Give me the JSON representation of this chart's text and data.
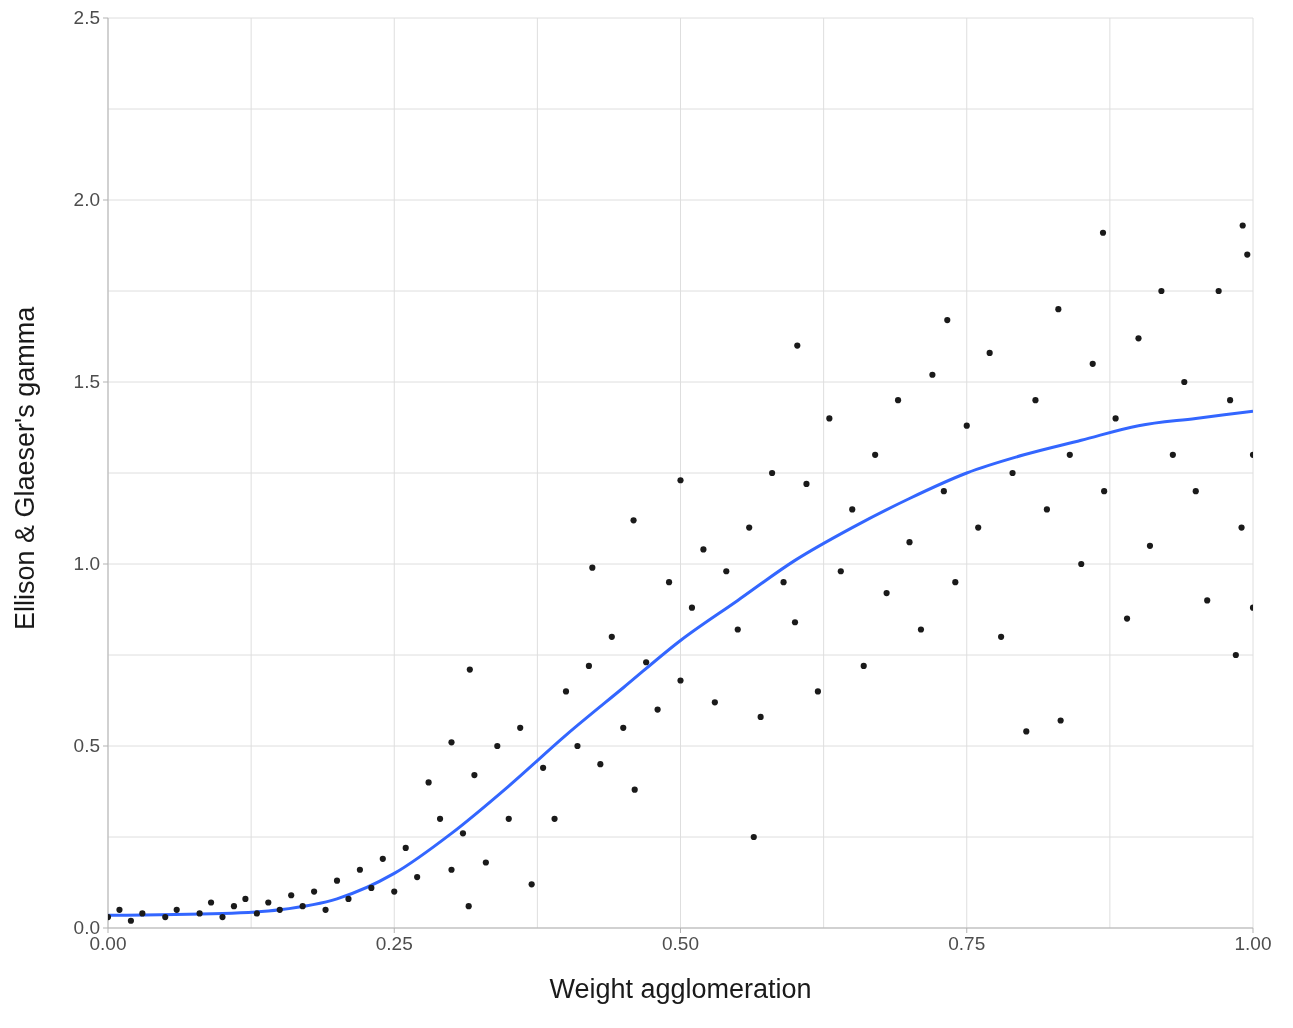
{
  "chart_data": {
    "type": "scatter",
    "xlabel": "Weight agglomeration",
    "ylabel": "Ellison & Glaeser's gamma",
    "xlim": [
      0,
      1
    ],
    "ylim": [
      0,
      2.5
    ],
    "xticks": [
      {
        "value": 0,
        "label": "0.00"
      },
      {
        "value": 0.125,
        "label": null
      },
      {
        "value": 0.25,
        "label": "0.25"
      },
      {
        "value": 0.375,
        "label": null
      },
      {
        "value": 0.5,
        "label": "0.50"
      },
      {
        "value": 0.625,
        "label": null
      },
      {
        "value": 0.75,
        "label": "0.75"
      },
      {
        "value": 0.875,
        "label": null
      },
      {
        "value": 1,
        "label": "1.00"
      }
    ],
    "yticks": [
      {
        "value": 0,
        "label": "0.0"
      },
      {
        "value": 0.25,
        "label": null
      },
      {
        "value": 0.5,
        "label": "0.5"
      },
      {
        "value": 0.75,
        "label": null
      },
      {
        "value": 1,
        "label": "1.0"
      },
      {
        "value": 1.25,
        "label": null
      },
      {
        "value": 1.5,
        "label": "1.5"
      },
      {
        "value": 1.75,
        "label": null
      },
      {
        "value": 2,
        "label": "2.0"
      },
      {
        "value": 2.25,
        "label": null
      },
      {
        "value": 2.5,
        "label": "2.5"
      }
    ],
    "grid": true,
    "marker": "circle",
    "series": [
      {
        "color": "#1a1a1a",
        "x": [
          0.0,
          0.01,
          0.02,
          0.03,
          0.05,
          0.06,
          0.08,
          0.09,
          0.1,
          0.11,
          0.12,
          0.13,
          0.14,
          0.15,
          0.16,
          0.17,
          0.18,
          0.19,
          0.2,
          0.21,
          0.22,
          0.23,
          0.24,
          0.25,
          0.26,
          0.27,
          0.28,
          0.29,
          0.3,
          0.3,
          0.31,
          0.32,
          0.33,
          0.34,
          0.35,
          0.36,
          0.37,
          0.38,
          0.39,
          0.4,
          0.41,
          0.42,
          0.43,
          0.44,
          0.45,
          0.46,
          0.47,
          0.48,
          0.49,
          0.5,
          0.51,
          0.52,
          0.53,
          0.54,
          0.55,
          0.56,
          0.57,
          0.58,
          0.59,
          0.6,
          0.61,
          0.62,
          0.63,
          0.64,
          0.65,
          0.66,
          0.67,
          0.68,
          0.69,
          0.7,
          0.71,
          0.72,
          0.73,
          0.74,
          0.75,
          0.76,
          0.77,
          0.78,
          0.79,
          0.81,
          0.82,
          0.83,
          0.84,
          0.85,
          0.86,
          0.87,
          0.88,
          0.89,
          0.9,
          0.91,
          0.92,
          0.93,
          0.94,
          0.95,
          0.96,
          0.97,
          0.98,
          0.99,
          1.0,
          1.0,
          0.995,
          0.316,
          0.5,
          0.602,
          0.869,
          0.991,
          0.564,
          0.802,
          0.832,
          0.985,
          0.459,
          0.423,
          0.315,
          0.733
        ],
        "values": [
          0.03,
          0.05,
          0.02,
          0.04,
          0.03,
          0.05,
          0.04,
          0.07,
          0.03,
          0.06,
          0.08,
          0.04,
          0.07,
          0.05,
          0.09,
          0.06,
          0.1,
          0.05,
          0.13,
          0.08,
          0.16,
          0.11,
          0.19,
          0.1,
          0.22,
          0.14,
          0.4,
          0.3,
          0.16,
          0.51,
          0.26,
          0.42,
          0.18,
          0.5,
          0.3,
          0.55,
          0.12,
          0.44,
          0.3,
          0.65,
          0.5,
          0.72,
          0.45,
          0.8,
          0.55,
          0.38,
          0.73,
          0.6,
          0.95,
          0.68,
          0.88,
          1.04,
          0.62,
          0.98,
          0.82,
          1.1,
          0.58,
          1.25,
          0.95,
          0.84,
          1.22,
          0.65,
          1.4,
          0.98,
          1.15,
          0.72,
          1.3,
          0.92,
          1.45,
          1.06,
          0.82,
          1.52,
          1.2,
          0.95,
          1.38,
          1.1,
          1.58,
          0.8,
          1.25,
          1.45,
          1.15,
          1.7,
          1.3,
          1.0,
          1.55,
          1.2,
          1.4,
          0.85,
          1.62,
          1.05,
          1.75,
          1.3,
          1.5,
          1.2,
          0.9,
          1.75,
          1.45,
          1.1,
          1.3,
          0.88,
          1.85,
          0.71,
          1.23,
          1.6,
          1.91,
          1.93,
          0.25,
          0.54,
          0.57,
          0.75,
          1.12,
          0.99,
          0.06,
          1.67
        ]
      },
      {
        "type": "line",
        "color": "#3366ff",
        "marker": "none",
        "x": [
          0,
          0.1,
          0.15,
          0.2,
          0.25,
          0.3,
          0.35,
          0.4,
          0.45,
          0.5,
          0.55,
          0.6,
          0.65,
          0.7,
          0.75,
          0.8,
          0.85,
          0.9,
          0.95,
          1.0
        ],
        "values": [
          0.035,
          0.04,
          0.05,
          0.08,
          0.15,
          0.26,
          0.39,
          0.53,
          0.66,
          0.79,
          0.9,
          1.01,
          1.1,
          1.18,
          1.25,
          1.3,
          1.34,
          1.38,
          1.4,
          1.42
        ]
      }
    ]
  }
}
